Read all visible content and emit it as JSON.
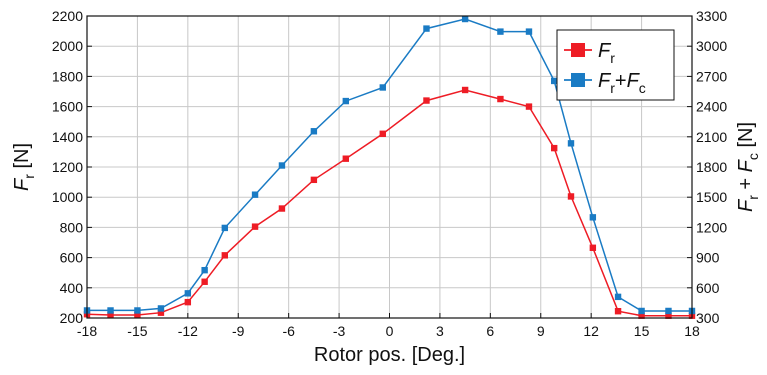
{
  "chart_data": {
    "type": "line",
    "xlabel": "Rotor pos. [Deg.]",
    "ylabel_left": {
      "main": "F",
      "sub": "r",
      "unit": " [N]"
    },
    "ylabel_right": {
      "main": "F",
      "sub": "r",
      "plus": " + ",
      "main2": "F",
      "sub2": "c",
      "unit": " [N]"
    },
    "xlim": [
      -18,
      18
    ],
    "ylim_left": [
      200,
      2200
    ],
    "ylim_right": [
      300,
      3300
    ],
    "x_ticks": [
      -18,
      -15,
      -12,
      -9,
      -6,
      -3,
      0,
      3,
      6,
      9,
      12,
      15,
      18
    ],
    "y_ticks_left": [
      200,
      400,
      600,
      800,
      1000,
      1200,
      1400,
      1600,
      1800,
      2000,
      2200
    ],
    "y_ticks_right": [
      300,
      600,
      900,
      1200,
      1500,
      1800,
      2100,
      2400,
      2700,
      3000,
      3300
    ],
    "grid": true,
    "legend_position": "top-right",
    "series": [
      {
        "name": "Fr",
        "label_main": "F",
        "label_sub": "r",
        "axis": "left",
        "color": "#ee1c25",
        "x": [
          -18,
          -16.6,
          -15,
          -13.6,
          -12,
          -11,
          -9.8,
          -8,
          -6.4,
          -4.5,
          -2.6,
          -0.4,
          2.2,
          4.5,
          6.6,
          8.3,
          9.8,
          10.8,
          12.1,
          13.6,
          15,
          16.6,
          18
        ],
        "y": [
          225,
          220,
          220,
          235,
          305,
          440,
          615,
          805,
          925,
          1115,
          1255,
          1420,
          1640,
          1710,
          1650,
          1600,
          1325,
          1005,
          665,
          245,
          215,
          215,
          215
        ]
      },
      {
        "name": "Fr+Fc",
        "label_main": "F",
        "label_sub": "r",
        "label_plus": "+",
        "label_main2": "F",
        "label_sub2": "c",
        "axis": "right",
        "color": "#1a7bc4",
        "x": [
          -18,
          -16.6,
          -15,
          -13.6,
          -12,
          -11,
          -9.8,
          -8,
          -6.4,
          -4.5,
          -2.6,
          -0.4,
          2.2,
          4.5,
          6.6,
          8.3,
          9.8,
          10.8,
          12.1,
          13.6,
          15,
          16.6,
          18
        ],
        "y": [
          375,
          375,
          375,
          395,
          545,
          775,
          1195,
          1525,
          1815,
          2155,
          2455,
          2590,
          3175,
          3270,
          3145,
          3145,
          2655,
          2035,
          1300,
          510,
          370,
          370,
          370
        ]
      }
    ]
  }
}
